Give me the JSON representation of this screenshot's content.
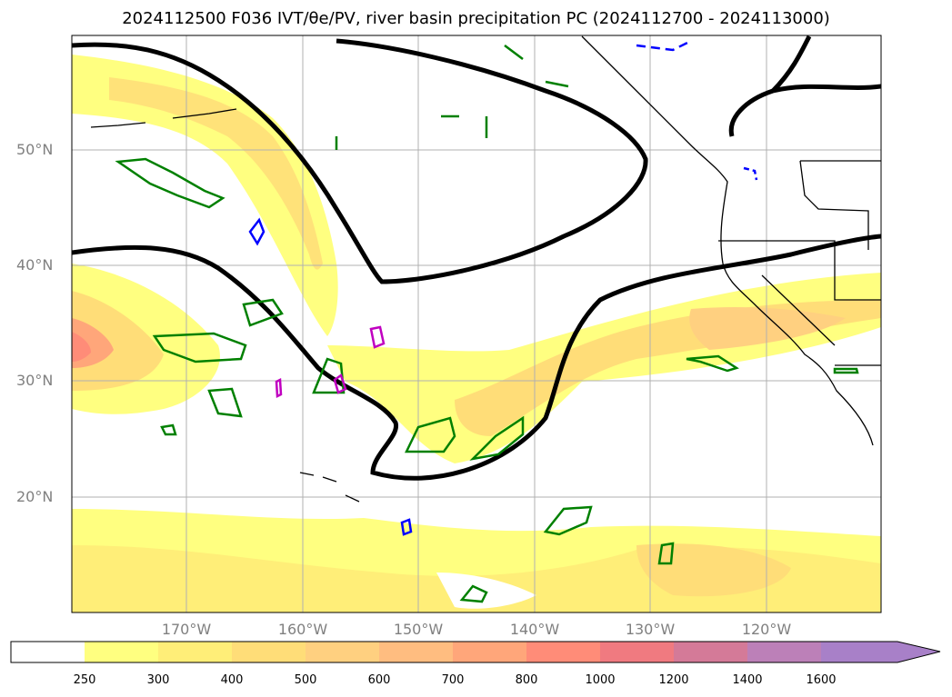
{
  "title": "2024112500 F036 IVT/θe/PV, river basin precipitation PC (2024112700 - 2024113000)",
  "map": {
    "lat_labels": [
      "50°N",
      "40°N",
      "30°N",
      "20°N"
    ],
    "lon_labels": [
      "170°W",
      "160°W",
      "150°W",
      "140°W",
      "130°W",
      "120°W"
    ]
  },
  "colorbar": {
    "levels": [
      "250",
      "300",
      "400",
      "500",
      "600",
      "700",
      "800",
      "1000",
      "1200",
      "1400",
      "1600"
    ],
    "colors": [
      "#ffffff",
      "#ffff80",
      "#ffee78",
      "#ffdd78",
      "#ffd080",
      "#ffbd80",
      "#ffa67a",
      "#ff8c78",
      "#f07a80",
      "#d47a98",
      "#bc80b8",
      "#a880c8"
    ]
  }
}
